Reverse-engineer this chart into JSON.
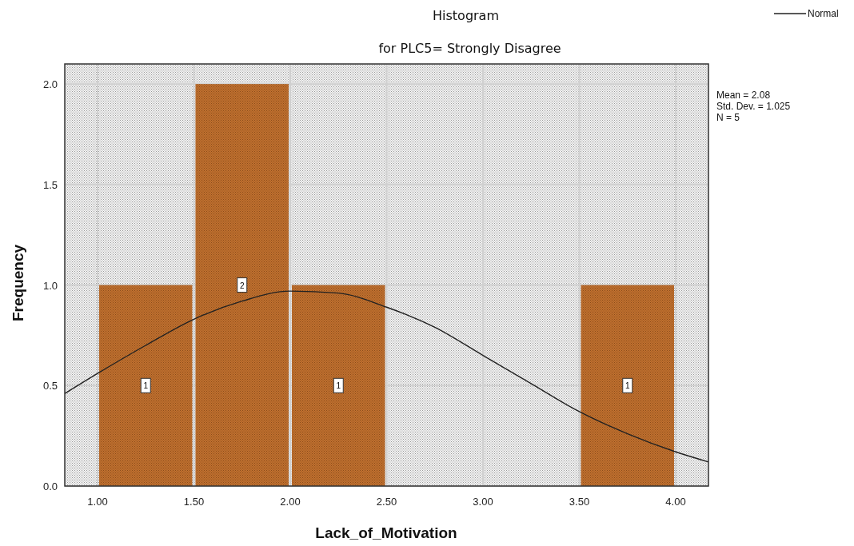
{
  "chart_data": {
    "type": "histogram",
    "title": "Histogram",
    "subtitle": "for PLC5= Strongly Disagree",
    "xlabel": "Lack_of_Motivation",
    "ylabel": "Frequency",
    "bins": [
      1,
      1.5,
      2,
      2.5,
      3,
      3.5,
      4
    ],
    "values": [
      1,
      2,
      1,
      0,
      0,
      1
    ],
    "value_labels": [
      "1",
      "2",
      "1",
      null,
      null,
      "1"
    ],
    "color": "#c0702e",
    "series": [
      {
        "type": "line",
        "name": "Normal",
        "color": "#222222",
        "x": [
          0.83,
          1.0,
          1.25,
          1.5,
          1.75,
          2.0,
          2.25,
          2.5,
          2.75,
          3.0,
          3.25,
          3.5,
          3.75,
          4.0,
          4.17
        ],
        "values": [
          0.46,
          0.56,
          0.7,
          0.83,
          0.92,
          0.97,
          0.96,
          0.89,
          0.79,
          0.65,
          0.51,
          0.37,
          0.26,
          0.17,
          0.12
        ]
      }
    ],
    "xlim": [
      0.83,
      4.17
    ],
    "xticks": [
      {
        "value": 1,
        "label": "1.00"
      },
      {
        "value": 1.5,
        "label": "1.50"
      },
      {
        "value": 2,
        "label": "2.00"
      },
      {
        "value": 2.5,
        "label": "2.50"
      },
      {
        "value": 3,
        "label": "3.00"
      },
      {
        "value": 3.5,
        "label": "3.50"
      },
      {
        "value": 4,
        "label": "4.00"
      }
    ],
    "ylim": [
      0,
      2.1
    ],
    "yticks": [
      {
        "value": 0,
        "label": "0.0"
      },
      {
        "value": 0.5,
        "label": "0.5"
      },
      {
        "value": 1,
        "label": "1.0"
      },
      {
        "value": 1.5,
        "label": "1.5"
      },
      {
        "value": 2,
        "label": "2.0"
      }
    ],
    "grid": true,
    "legend": "top right",
    "annotations": [
      "Mean = 2.08",
      "Std. Dev. = 1.025",
      "N = 5"
    ]
  }
}
